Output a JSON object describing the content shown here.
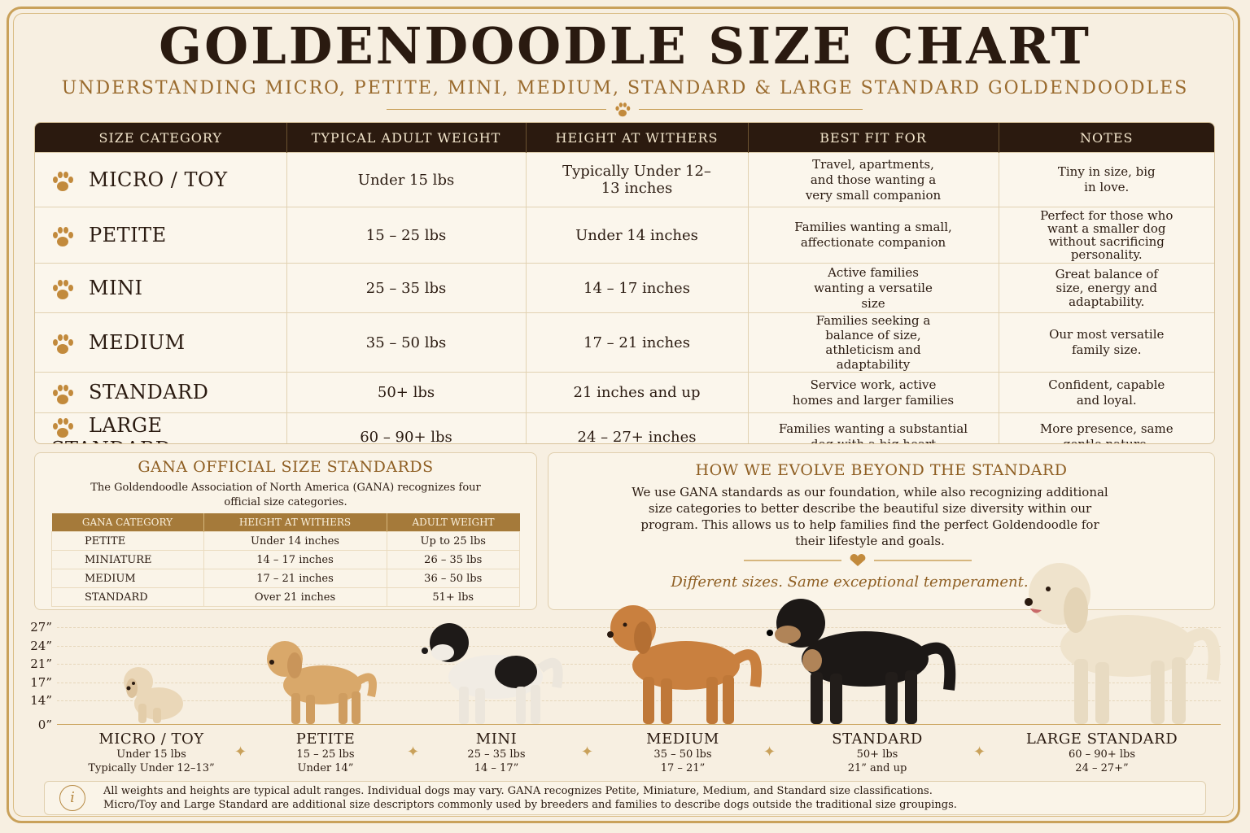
{
  "title": "GOLDENDOODLE SIZE CHART",
  "subtitle": "UNDERSTANDING MICRO, PETITE, MINI, MEDIUM, STANDARD & LARGE STANDARD GOLDENDOODLES",
  "colors": {
    "accent": "#c9a15a",
    "dark_header": "#2b1a0f",
    "brown_text": "#8e5e22",
    "background": "#f7efe1"
  },
  "main_table": {
    "headers": [
      "SIZE CATEGORY",
      "TYPICAL ADULT WEIGHT",
      "HEIGHT AT WITHERS",
      "BEST FIT FOR",
      "NOTES"
    ],
    "rows": [
      {
        "category": "MICRO / TOY",
        "weight": "Under 15 lbs",
        "height": "Typically Under 12–13 inches",
        "best_fit": "Travel, apartments, and those wanting a very small companion",
        "notes": "Tiny in size, big in love."
      },
      {
        "category": "PETITE",
        "weight": "15 – 25 lbs",
        "height": "Under 14 inches",
        "best_fit": "Families wanting a small, affectionate companion",
        "notes": "Perfect for those who want a smaller dog without sacrificing personality."
      },
      {
        "category": "MINI",
        "weight": "25 – 35 lbs",
        "height": "14 – 17 inches",
        "best_fit": "Active families wanting a versatile size",
        "notes": "Great balance of size, energy and adaptability."
      },
      {
        "category": "MEDIUM",
        "weight": "35 – 50 lbs",
        "height": "17 – 21 inches",
        "best_fit": "Families seeking a balance of size, athleticism and adaptability",
        "notes": "Our most versatile family size."
      },
      {
        "category": "STANDARD",
        "weight": "50+ lbs",
        "height": "21 inches and up",
        "best_fit": "Service work, active homes and larger families",
        "notes": "Confident, capable and loyal."
      },
      {
        "category": "LARGE STANDARD",
        "weight": "60 – 90+ lbs",
        "height": "24 – 27+ inches",
        "best_fit": "Families wanting a substantial dog with a big heart",
        "notes": "More presence, same gentle nature."
      }
    ]
  },
  "gana": {
    "title": "GANA OFFICIAL SIZE STANDARDS",
    "description": "The Goldendoodle Association of North America (GANA) recognizes four official size categories.",
    "headers": [
      "GANA CATEGORY",
      "HEIGHT AT WITHERS",
      "ADULT WEIGHT"
    ],
    "rows": [
      {
        "category": "PETITE",
        "height": "Under 14 inches",
        "weight": "Up to 25 lbs"
      },
      {
        "category": "MINIATURE",
        "height": "14 – 17 inches",
        "weight": "26 – 35 lbs"
      },
      {
        "category": "MEDIUM",
        "height": "17 – 21 inches",
        "weight": "36 – 50 lbs"
      },
      {
        "category": "STANDARD",
        "height": "Over 21 inches",
        "weight": "51+ lbs"
      }
    ]
  },
  "evolve": {
    "title": "HOW WE EVOLVE BEYOND THE STANDARD",
    "text": "We use GANA standards as our foundation, while also recognizing additional size categories to better describe the beautiful size diversity within our program. This allows us to help families find the perfect Goldendoodle for their lifestyle and goals.",
    "tagline": "Different sizes. Same exceptional temperament."
  },
  "height_chart": {
    "axis_labels": [
      "27”",
      "24”",
      "21”",
      "17”",
      "14”",
      "0”"
    ],
    "dogs": [
      {
        "name": "MICRO / TOY",
        "weight": "Under 15 lbs",
        "height": "Typically Under 12–13”",
        "coat": "cream"
      },
      {
        "name": "PETITE",
        "weight": "15 – 25 lbs",
        "height": "Under 14”",
        "coat": "apricot"
      },
      {
        "name": "MINI",
        "weight": "25 – 35 lbs",
        "height": "14 – 17”",
        "coat": "black and white parti"
      },
      {
        "name": "MEDIUM",
        "weight": "35 – 50 lbs",
        "height": "17 – 21”",
        "coat": "red"
      },
      {
        "name": "STANDARD",
        "weight": "50+ lbs",
        "height": "21” and up",
        "coat": "black and tan phantom"
      },
      {
        "name": "LARGE STANDARD",
        "weight": "60 – 90+ lbs",
        "height": "24 – 27+”",
        "coat": "cream"
      }
    ]
  },
  "footer": {
    "line1": "All weights and heights are typical adult ranges. Individual dogs may vary. GANA recognizes Petite, Miniature, Medium, and Standard size classifications.",
    "line2": "Micro/Toy and Large Standard are additional size descriptors commonly used by breeders and families to describe dogs outside the traditional size groupings."
  }
}
